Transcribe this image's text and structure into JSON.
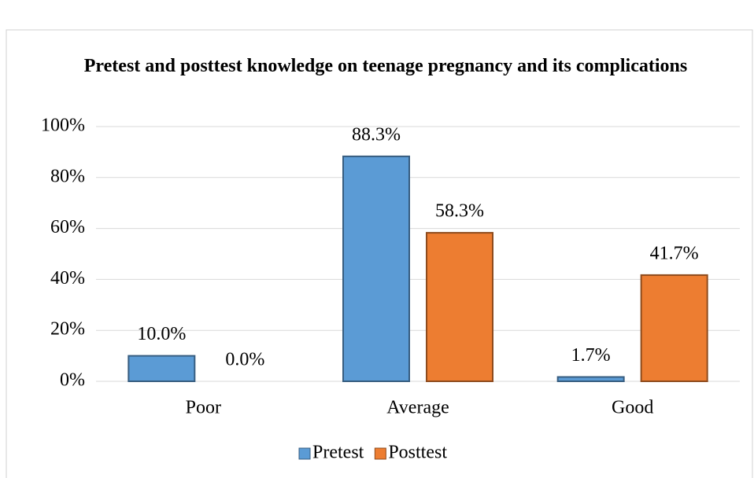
{
  "chart_data": {
    "type": "bar",
    "title": "Pretest and posttest knowledge on teenage pregnancy and its complications",
    "categories": [
      "Poor",
      "Average",
      "Good"
    ],
    "series": [
      {
        "name": "Pretest",
        "color": "#5b9bd5",
        "values": [
          10.0,
          88.3,
          1.7
        ],
        "value_labels": [
          "10.0%",
          "88.3%",
          "1.7%"
        ]
      },
      {
        "name": "Posttest",
        "color": "#ed7d31",
        "values": [
          0.0,
          58.3,
          41.7
        ],
        "value_labels": [
          "0.0%",
          "58.3%",
          "41.7%"
        ]
      }
    ],
    "ylim": [
      0,
      100
    ],
    "yticks": [
      {
        "value": 0,
        "label": "0%"
      },
      {
        "value": 20,
        "label": "20%"
      },
      {
        "value": 40,
        "label": "40%"
      },
      {
        "value": 60,
        "label": "60%"
      },
      {
        "value": 80,
        "label": "80%"
      },
      {
        "value": 100,
        "label": "100%"
      }
    ],
    "grid": true,
    "legend": "bottom"
  }
}
